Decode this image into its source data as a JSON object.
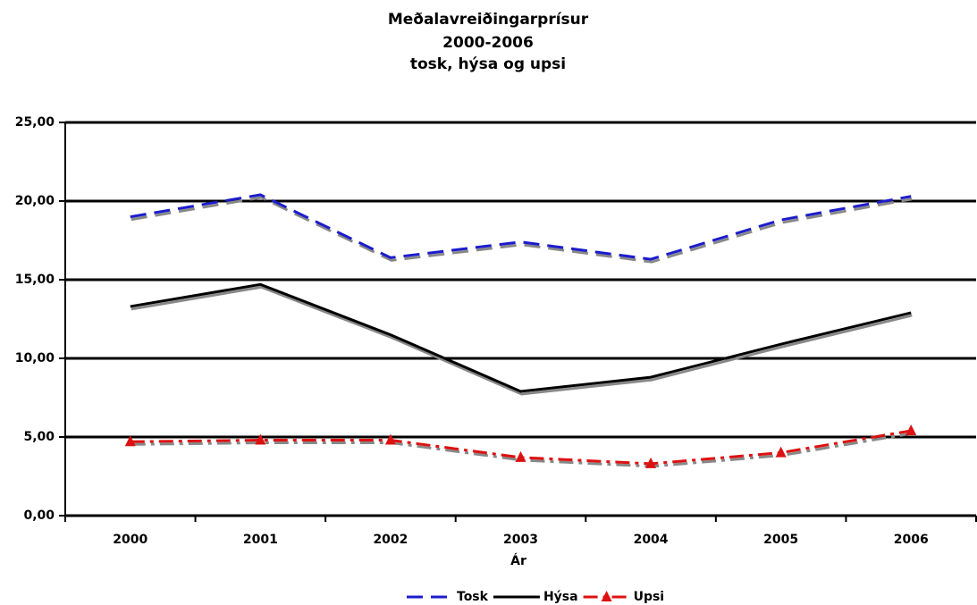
{
  "chart_data": {
    "type": "line",
    "title": [
      "Meðalavreiðingarprísur",
      "2000-2006",
      "tosk, hýsa og upsi"
    ],
    "xlabel": "Ár",
    "categories": [
      "2000",
      "2001",
      "2002",
      "2003",
      "2004",
      "2005",
      "2006"
    ],
    "series": [
      {
        "name": "Tosk",
        "color": "#1c1ccc",
        "dash": "18,9",
        "marker": "none",
        "values": [
          19.0,
          20.4,
          16.4,
          17.4,
          16.3,
          18.8,
          20.3
        ]
      },
      {
        "name": "Hýsa",
        "color": "#000000",
        "dash": "none",
        "marker": "none",
        "values": [
          13.3,
          14.7,
          11.5,
          7.9,
          8.8,
          10.9,
          12.9
        ]
      },
      {
        "name": "Upsi",
        "color": "#dd1111",
        "dash": "16,6,4,6",
        "marker": "triangle",
        "values": [
          4.7,
          4.8,
          4.8,
          3.7,
          3.3,
          4.0,
          5.4
        ]
      }
    ],
    "ylim": [
      0,
      25
    ],
    "yticks": [
      {
        "value": 0,
        "label": "0,00"
      },
      {
        "value": 5,
        "label": "5,00"
      },
      {
        "value": 10,
        "label": "10,00"
      },
      {
        "value": 15,
        "label": "15,00"
      },
      {
        "value": 20,
        "label": "20,00"
      },
      {
        "value": 25,
        "label": "25,00"
      }
    ],
    "grid": true,
    "legend": "bottom"
  }
}
